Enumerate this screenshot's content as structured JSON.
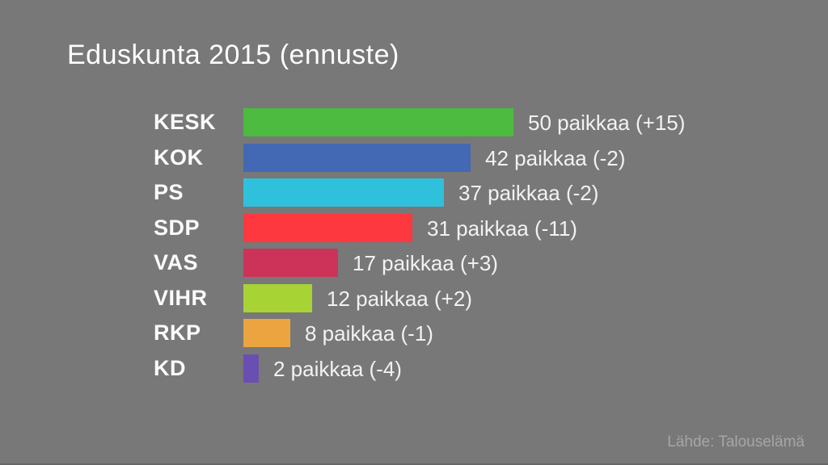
{
  "chart_data": {
    "type": "bar",
    "orientation": "horizontal",
    "title": "Eduskunta 2015 (ennuste)",
    "categories": [
      "KESK",
      "KOK",
      "PS",
      "SDP",
      "VAS",
      "VIHR",
      "RKP",
      "KD"
    ],
    "values": [
      50,
      42,
      37,
      31,
      17,
      12,
      8,
      2
    ],
    "changes": [
      15,
      -2,
      -2,
      -11,
      3,
      2,
      -1,
      -4
    ],
    "value_labels": [
      "50 paikkaa (+15)",
      "42 paikkaa (-2)",
      "37 paikkaa (-2)",
      "31 paikkaa (-11)",
      "17 paikkaa (+3)",
      "12 paikkaa (+2)",
      "8 paikkaa (-1)",
      "2 paikkaa (-4)"
    ],
    "bar_colors": [
      "#4cbb3f",
      "#4368b4",
      "#2fc0dc",
      "#fd383f",
      "#cd3358",
      "#a8d335",
      "#eca441",
      "#6a4fb2"
    ],
    "xlim": [
      0,
      50
    ],
    "grid": false,
    "legend": false
  },
  "footer": {
    "source": "Lähde: Talouselämä"
  },
  "colors": {
    "background": "#787878",
    "title_text": "#fdfdfd",
    "label_text": "#fbfbfb",
    "value_text": "#f2f2f2",
    "source_text": "#a6a6a6"
  }
}
